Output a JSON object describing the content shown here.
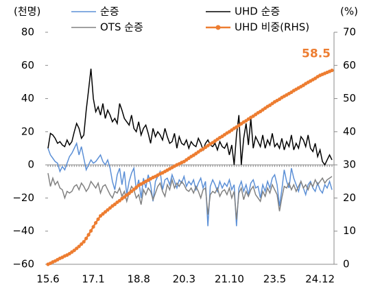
{
  "chart_data": {
    "type": "line",
    "ylabel": "(천명)",
    "y2label": "(%)",
    "categories": [
      "15.6",
      null,
      null,
      null,
      null,
      null,
      null,
      null,
      null,
      null,
      null,
      null,
      null,
      null,
      null,
      null,
      null,
      null,
      null,
      "17.1",
      null,
      null,
      null,
      null,
      null,
      null,
      null,
      null,
      null,
      null,
      null,
      null,
      null,
      null,
      null,
      null,
      null,
      null,
      "18.8",
      null,
      null,
      null,
      null,
      null,
      null,
      null,
      null,
      null,
      null,
      null,
      null,
      null,
      null,
      null,
      null,
      null,
      null,
      "20.3",
      null,
      null,
      null,
      null,
      null,
      null,
      null,
      null,
      null,
      null,
      null,
      null,
      null,
      null,
      null,
      null,
      null,
      null,
      "21.10",
      null,
      null,
      null,
      null,
      null,
      null,
      null,
      null,
      null,
      null,
      null,
      null,
      null,
      null,
      null,
      null,
      null,
      null,
      "23.5",
      null,
      null,
      null,
      null,
      null,
      null,
      null,
      null,
      null,
      null,
      null,
      null,
      null,
      null,
      null,
      null,
      null,
      null,
      "24.12",
      null,
      null,
      null,
      null,
      null
    ],
    "ylim": [
      -60,
      80
    ],
    "yticks": [
      {
        "value": -60,
        "label": "−60"
      },
      {
        "value": -40,
        "label": "−40"
      },
      {
        "value": -20,
        "label": "−20"
      },
      0,
      20,
      40,
      60,
      80
    ],
    "y2lim": [
      0,
      70
    ],
    "y2ticks": [
      0,
      10,
      20,
      30,
      40,
      50,
      60,
      70
    ],
    "series": [
      {
        "name": "순증",
        "color": "#5b8fd6",
        "values": [
          10,
          6,
          4,
          2,
          1,
          -4,
          -1,
          -3,
          1,
          5,
          7,
          10,
          13,
          6,
          11,
          4,
          -3,
          0,
          3,
          1,
          2,
          4,
          6,
          2,
          0,
          3,
          -2,
          -10,
          -15,
          -6,
          -2,
          -12,
          -4,
          -18,
          -10,
          -5,
          -2,
          -15,
          -9,
          -20,
          -8,
          -14,
          -6,
          -12,
          -22,
          -10,
          -7,
          -4,
          -15,
          -9,
          -8,
          -12,
          -6,
          -10,
          -14,
          -9,
          -11,
          -7,
          -13,
          -10,
          -12,
          -9,
          -15,
          -11,
          -8,
          -14,
          -10,
          -37,
          -13,
          -9,
          -12,
          -16,
          -10,
          -14,
          -11,
          -13,
          -9,
          -15,
          -12,
          -37,
          -14,
          -10,
          -16,
          -12,
          -18,
          -11,
          -9,
          -14,
          -13,
          -20,
          -12,
          -16,
          -10,
          -14,
          -8,
          -6,
          -12,
          -25,
          -15,
          -3,
          -10,
          -14,
          -2,
          -8,
          -12,
          -16,
          -10,
          -14,
          -18,
          -12,
          -10,
          -14,
          -16,
          -11,
          -15,
          -17,
          -12,
          -14,
          -10,
          -15
        ]
      },
      {
        "name": "OTS 순증",
        "color": "#808080",
        "values": [
          -5,
          -13,
          -8,
          -12,
          -10,
          -14,
          -15,
          -20,
          -16,
          -17,
          -16,
          -13,
          -12,
          -15,
          -11,
          -13,
          -16,
          -14,
          -10,
          -12,
          -14,
          -11,
          -17,
          -13,
          -12,
          -15,
          -18,
          -20,
          -16,
          -17,
          -14,
          -19,
          -16,
          -22,
          -17,
          -13,
          -15,
          -20,
          -18,
          -24,
          -15,
          -18,
          -14,
          -16,
          -21,
          -17,
          -13,
          -11,
          -16,
          -19,
          -12,
          -15,
          -9,
          -14,
          -11,
          -13,
          -10,
          -12,
          -15,
          -16,
          -14,
          -17,
          -13,
          -16,
          -20,
          -15,
          -14,
          -30,
          -18,
          -16,
          -17,
          -14,
          -19,
          -16,
          -15,
          -18,
          -14,
          -20,
          -16,
          -33,
          -17,
          -14,
          -21,
          -16,
          -19,
          -15,
          -13,
          -18,
          -20,
          -22,
          -16,
          -19,
          -14,
          -17,
          -12,
          -15,
          -18,
          -28,
          -20,
          -13,
          -14,
          -11,
          -15,
          -12,
          -16,
          -13,
          -10,
          -14,
          -12,
          -15,
          -11,
          -13,
          -9,
          -12,
          -10,
          -8,
          -11,
          -9,
          -8,
          -7
        ]
      },
      {
        "name": "UHD 순증",
        "color": "#000000",
        "values": [
          10,
          19,
          18,
          16,
          13,
          14,
          12,
          11,
          15,
          12,
          14,
          20,
          25,
          22,
          16,
          18,
          33,
          45,
          58,
          40,
          32,
          35,
          30,
          37,
          28,
          33,
          30,
          26,
          28,
          25,
          37,
          33,
          28,
          26,
          24,
          30,
          22,
          20,
          26,
          18,
          22,
          24,
          19,
          13,
          22,
          17,
          20,
          18,
          15,
          22,
          17,
          13,
          14,
          19,
          10,
          17,
          13,
          12,
          15,
          10,
          14,
          12,
          11,
          16,
          13,
          9,
          13,
          15,
          12,
          11,
          13,
          9,
          14,
          11,
          10,
          13,
          6,
          12,
          0,
          18,
          30,
          0,
          16,
          25,
          12,
          28,
          10,
          17,
          14,
          11,
          18,
          10,
          15,
          12,
          19,
          11,
          13,
          10,
          16,
          9,
          14,
          11,
          18,
          9,
          13,
          10,
          17,
          15,
          11,
          18,
          10,
          8,
          13,
          5,
          9,
          2,
          0,
          3,
          6,
          3
        ]
      },
      {
        "name": "UHD 비중(RHS)",
        "color": "#ed7d31",
        "axis": "y2",
        "values": [
          0,
          0.3,
          0.7,
          1.0,
          1.4,
          1.8,
          2.1,
          2.5,
          2.8,
          3.2,
          3.7,
          4.2,
          4.8,
          5.4,
          6.1,
          6.8,
          7.8,
          8.9,
          10.1,
          11.3,
          12.5,
          13.6,
          14.6,
          15.2,
          15.8,
          16.4,
          17.0,
          17.6,
          18.1,
          18.7,
          19.2,
          19.8,
          20.3,
          20.9,
          21.4,
          22.0,
          22.6,
          23.2,
          23.8,
          24.2,
          24.6,
          25.0,
          25.4,
          25.8,
          26.2,
          26.5,
          26.9,
          27.3,
          27.6,
          28.0,
          28.4,
          28.8,
          29.2,
          29.6,
          30.0,
          30.3,
          30.7,
          31.0,
          31.5,
          32.0,
          32.5,
          32.9,
          33.4,
          33.9,
          34.4,
          34.8,
          35.3,
          35.8,
          36.3,
          36.7,
          37.2,
          37.7,
          38.2,
          38.6,
          39.1,
          39.6,
          40.0,
          40.5,
          41.0,
          41.4,
          41.9,
          42.4,
          42.9,
          43.3,
          43.8,
          44.3,
          44.7,
          45.2,
          45.7,
          46.1,
          46.6,
          47.1,
          47.6,
          48.0,
          48.5,
          49.0,
          49.4,
          49.8,
          50.3,
          50.7,
          51.1,
          51.5,
          51.9,
          52.4,
          52.8,
          53.2,
          53.6,
          54.0,
          54.5,
          54.9,
          55.3,
          55.7,
          56.1,
          56.6,
          57.0,
          57.3,
          57.6,
          57.9,
          58.2,
          58.5
        ]
      }
    ]
  }
}
